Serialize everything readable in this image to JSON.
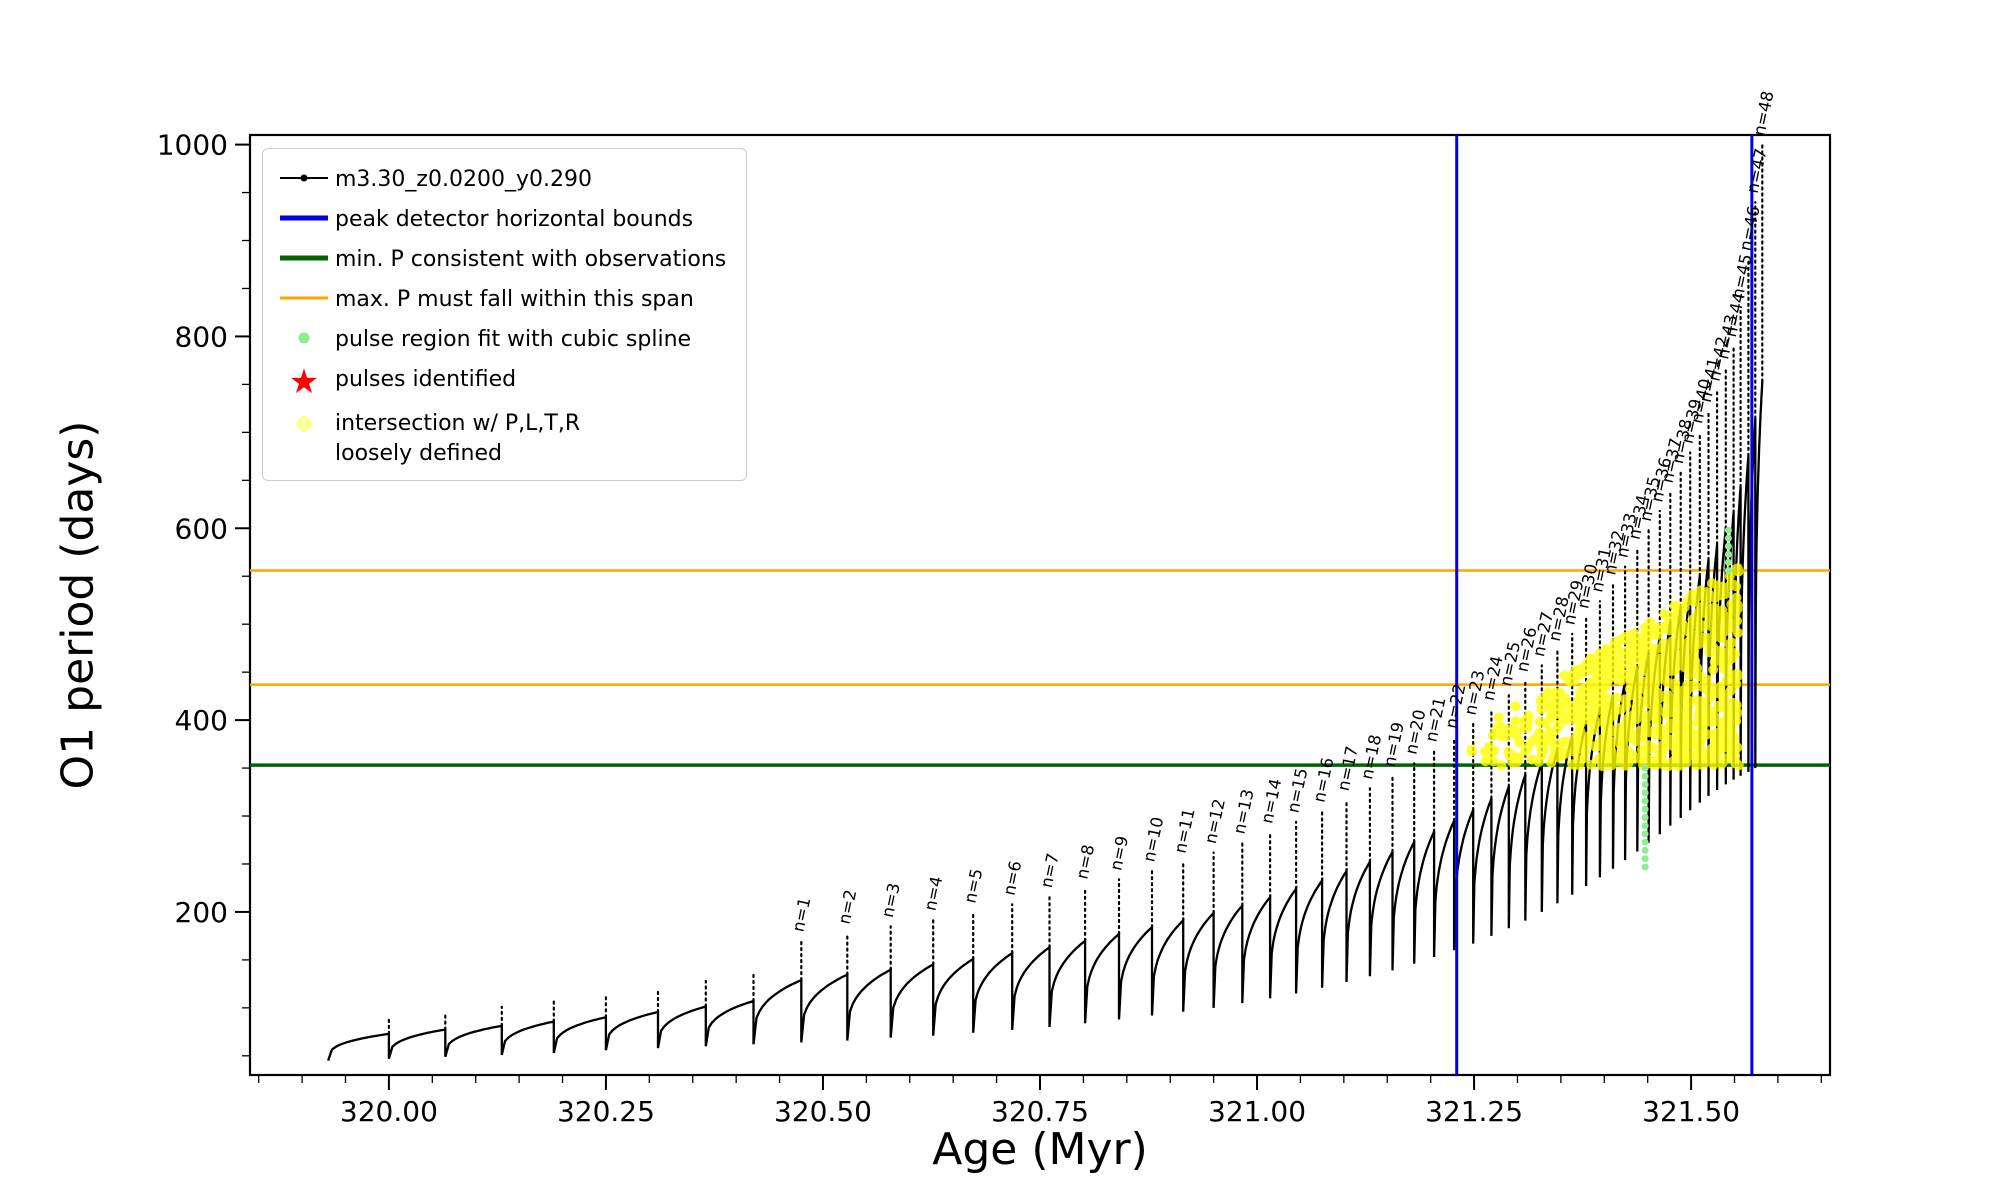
{
  "legend": {
    "entries": [
      {
        "icon": "series-line-icon",
        "marker": "line-dot",
        "color": "#000000",
        "label": "m3.30_z0.0200_y0.290"
      },
      {
        "icon": "blue-bounds-line-icon",
        "marker": "thick-line",
        "color": "#0000ee",
        "label": "peak detector horizontal bounds"
      },
      {
        "icon": "green-min-line-icon",
        "marker": "thick-line",
        "color": "#006400",
        "label": "min. P consistent with observations"
      },
      {
        "icon": "orange-span-line-icon",
        "marker": "line",
        "color": "#ffa500",
        "label": "max. P must fall within this span"
      },
      {
        "icon": "spline-dot-icon",
        "marker": "dot",
        "color": "#90ee90",
        "label": "pulse region fit with cubic spline"
      },
      {
        "icon": "pulse-star-icon",
        "marker": "star",
        "color": "#ff0000",
        "label": "pulses identified"
      },
      {
        "icon": "intersection-dot-icon",
        "marker": "dot-large",
        "color": "#ffffa0",
        "label": "intersection w/ P,L,T,R\nloosely defined"
      }
    ]
  },
  "chart_data": {
    "type": "line",
    "series_label": "m3.30_z0.0200_y0.290",
    "title": "",
    "xlabel": "Age (Myr)",
    "ylabel": "O1 period (days)",
    "xlim": [
      319.84,
      321.66
    ],
    "ylim": [
      30,
      1010
    ],
    "x_ticks": [
      320.0,
      320.25,
      320.5,
      320.75,
      321.0,
      321.25,
      321.5
    ],
    "x_tick_labels": [
      "320.00",
      "320.25",
      "320.50",
      "320.75",
      "321.00",
      "321.25",
      "321.50"
    ],
    "y_ticks": [
      200,
      400,
      600,
      800,
      1000
    ],
    "x_minor_step": 0.05,
    "y_minor_step": 50,
    "grid": false,
    "legend_position": "upper left",
    "colors": {
      "series": "#000000",
      "bounds": "#0000ee",
      "min_line": "#006400",
      "span_line": "#ffa500",
      "spline": "#90ee90",
      "pulses": "#ff0000",
      "intersection": "#ffff00",
      "intersection_legend": "#ffffa0"
    },
    "peak_detector_bounds_x": [
      321.23,
      321.57
    ],
    "min_P_line_y": 353,
    "max_P_span_y": [
      437,
      556
    ],
    "pulses": [
      [
        319.93,
        45,
        90,
        ""
      ],
      [
        320.0,
        47,
        96,
        ""
      ],
      [
        320.065,
        49,
        101,
        ""
      ],
      [
        320.13,
        51,
        107,
        ""
      ],
      [
        320.19,
        53,
        113,
        ""
      ],
      [
        320.25,
        56,
        120,
        ""
      ],
      [
        320.31,
        58,
        128,
        ""
      ],
      [
        320.365,
        60,
        136,
        ""
      ],
      [
        320.42,
        62,
        170,
        "n=1"
      ],
      [
        320.475,
        64,
        178,
        "n=2"
      ],
      [
        320.528,
        66,
        185,
        "n=3"
      ],
      [
        320.578,
        69,
        192,
        "n=4"
      ],
      [
        320.627,
        71,
        200,
        "n=5"
      ],
      [
        320.673,
        74,
        208,
        "n=6"
      ],
      [
        320.718,
        77,
        216,
        "n=7"
      ],
      [
        320.761,
        80,
        225,
        "n=8"
      ],
      [
        320.802,
        84,
        234,
        "n=9"
      ],
      [
        320.841,
        88,
        243,
        "n=10"
      ],
      [
        320.879,
        92,
        252,
        "n=11"
      ],
      [
        320.915,
        96,
        262,
        "n=12"
      ],
      [
        320.95,
        100,
        272,
        "n=13"
      ],
      [
        320.983,
        105,
        283,
        "n=14"
      ],
      [
        321.015,
        110,
        294,
        "n=15"
      ],
      [
        321.045,
        115,
        305,
        "n=16"
      ],
      [
        321.075,
        121,
        317,
        "n=17"
      ],
      [
        321.103,
        127,
        329,
        "n=18"
      ],
      [
        321.13,
        133,
        342,
        "n=19"
      ],
      [
        321.156,
        139,
        355,
        "n=20"
      ],
      [
        321.181,
        146,
        368,
        "n=21"
      ],
      [
        321.204,
        153,
        382,
        "n=22"
      ],
      [
        321.227,
        160,
        396,
        "n=23"
      ],
      [
        321.249,
        167,
        411,
        "n=24"
      ],
      [
        321.27,
        175,
        426,
        "n=25"
      ],
      [
        321.29,
        183,
        441,
        "n=26"
      ],
      [
        321.309,
        191,
        457,
        "n=27"
      ],
      [
        321.328,
        200,
        473,
        "n=28"
      ],
      [
        321.346,
        209,
        490,
        "n=29"
      ],
      [
        321.363,
        218,
        507,
        "n=30"
      ],
      [
        321.379,
        227,
        524,
        "n=31"
      ],
      [
        321.395,
        236,
        542,
        "n=32"
      ],
      [
        321.41,
        245,
        560,
        "n=33"
      ],
      [
        321.424,
        254,
        579,
        "n=34"
      ],
      [
        321.438,
        263,
        598,
        "n=35"
      ],
      [
        321.451,
        272,
        618,
        "n=36"
      ],
      [
        321.464,
        281,
        638,
        "n=37"
      ],
      [
        321.476,
        290,
        658,
        "n=38"
      ],
      [
        321.488,
        298,
        679,
        "n=39"
      ],
      [
        321.499,
        306,
        700,
        "n=40"
      ],
      [
        321.51,
        314,
        722,
        "n=41"
      ],
      [
        321.52,
        321,
        744,
        "n=42"
      ],
      [
        321.53,
        327,
        767,
        "n=43"
      ],
      [
        321.54,
        333,
        790,
        "n=44"
      ],
      [
        321.549,
        338,
        830,
        "n=45"
      ],
      [
        321.557,
        342,
        880,
        "n=46"
      ],
      [
        321.566,
        346,
        940,
        "n=47"
      ],
      [
        321.574,
        350,
        1000,
        "n=48"
      ]
    ],
    "yellow_intersection": {
      "x_range": [
        321.245,
        321.555
      ],
      "y_bottom": 352,
      "y_top_start": 385,
      "y_top_end": 562,
      "count": 850,
      "seed": 12345
    },
    "spline_dots": [
      {
        "x": 321.447,
        "y0": 247,
        "y1": 350,
        "n": 13
      },
      {
        "x": 321.543,
        "y0": 556,
        "y1": 598,
        "n": 6
      }
    ]
  }
}
